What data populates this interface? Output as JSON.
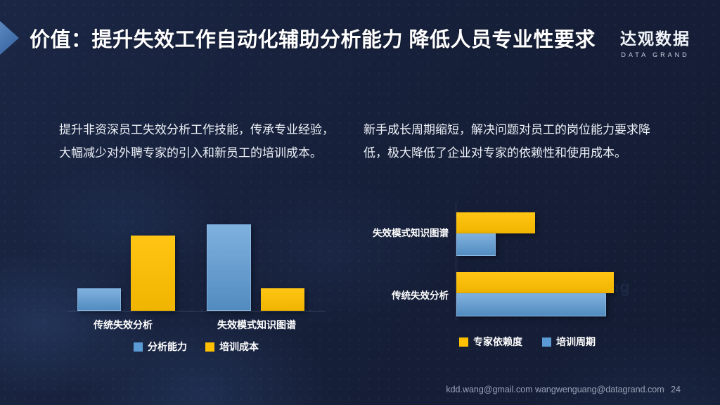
{
  "header": {
    "title": "价值：提升失效工作自动化辅助分析能力 降低人员专业性要求",
    "logo": {
      "name": "达观数据",
      "subtitle": "DATA GRAND"
    }
  },
  "paragraphs": {
    "left": "提升非资深员工失效分析工作技能，传承专业经验，大幅减少对外聘专家的引入和新员工的培训成本。",
    "right": "新手成长周期缩短，解决问题对员工的岗位能力要求降低，极大降低了企业对专家的依赖性和使用成本。"
  },
  "chart_data": [
    {
      "type": "bar",
      "orientation": "vertical",
      "title": "",
      "categories": [
        "传统失效分析",
        "失效模式知识图谱"
      ],
      "series": [
        {
          "name": "分析能力",
          "color": "#5b9bd5",
          "values": [
            1.0,
            3.8
          ]
        },
        {
          "name": "培训成本",
          "color": "#ffc000",
          "values": [
            3.3,
            1.0
          ]
        }
      ],
      "ylim": [
        0,
        4
      ],
      "grid": false,
      "legend_position": "bottom"
    },
    {
      "type": "bar",
      "orientation": "horizontal",
      "title": "",
      "categories": [
        "失效模式知识图谱",
        "传统失效分析"
      ],
      "series": [
        {
          "name": "专家依赖度",
          "color": "#ffc000",
          "values": [
            2.0,
            4.0
          ]
        },
        {
          "name": "培训周期",
          "color": "#5b9bd5",
          "values": [
            1.0,
            3.8
          ]
        }
      ],
      "xlim": [
        0,
        4.2
      ],
      "grid": false,
      "legend_position": "bottom"
    }
  ],
  "watermark": "wangwenguang",
  "footer": {
    "emails": "kdd.wang@gmail.com  wangwenguang@datagrand.com",
    "page_number": "24"
  },
  "colors": {
    "background": "#161f38",
    "accent_blue": "#5b9bd5",
    "accent_yellow": "#ffc000",
    "title_arrow": "#3a6fb5"
  }
}
